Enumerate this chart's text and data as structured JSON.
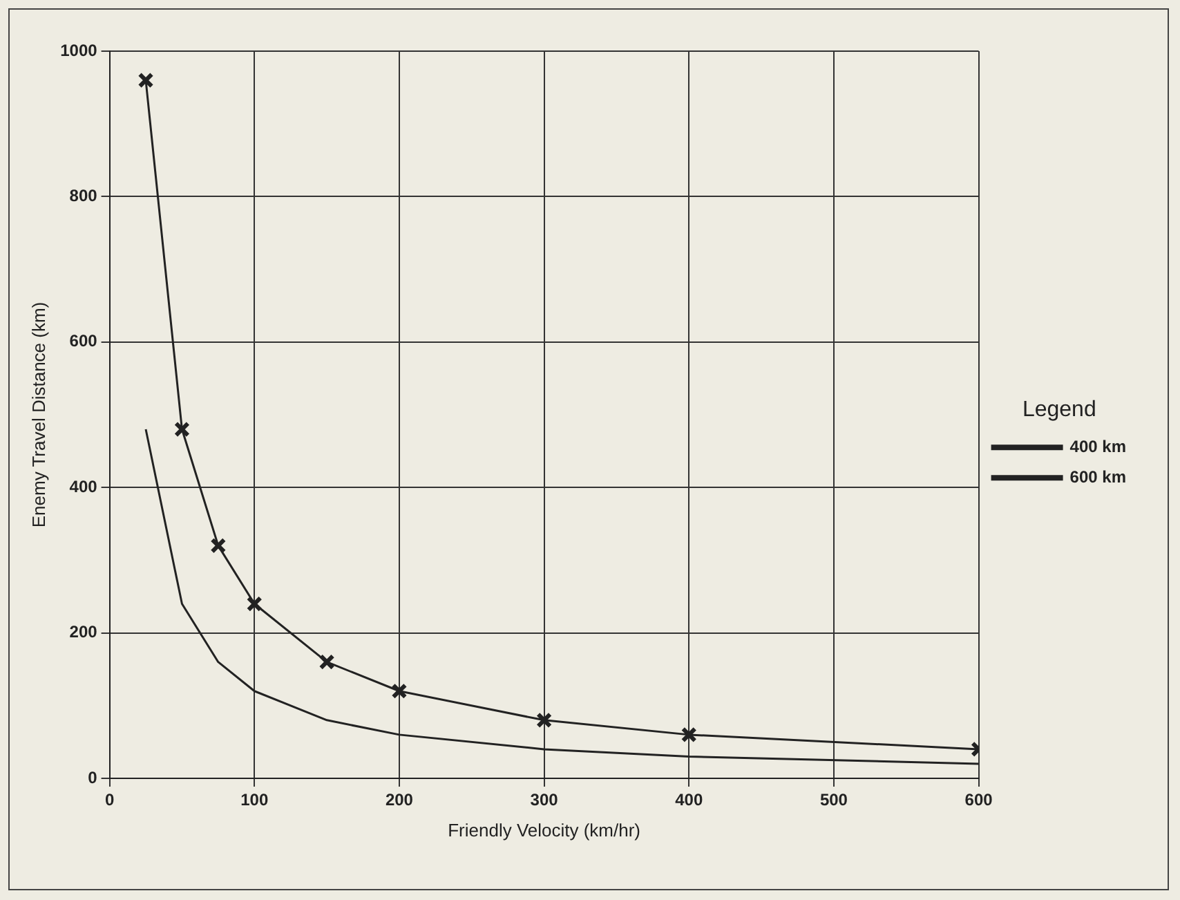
{
  "chart_data": {
    "type": "line",
    "xlabel": "Friendly Velocity (km/hr)",
    "ylabel": "Enemy Travel Distance (km)",
    "xlim": [
      0,
      600
    ],
    "xticks": [
      0,
      100,
      200,
      300,
      400,
      500,
      600
    ],
    "ylim": [
      0,
      1000
    ],
    "yticks": [
      0,
      200,
      400,
      600,
      800,
      1000
    ],
    "grid": true,
    "legend": "right",
    "legend_title": "Legend",
    "series": [
      {
        "name": "400 km",
        "color": "#222222",
        "marker": "none",
        "x": [
          25,
          50,
          75,
          100,
          150,
          200,
          300,
          400,
          600
        ],
        "values": [
          480,
          240,
          160,
          120,
          80,
          60,
          40,
          30,
          20
        ]
      },
      {
        "name": "600 km",
        "color": "#222222",
        "marker": "cross",
        "x": [
          25,
          50,
          75,
          100,
          150,
          200,
          300,
          400,
          600
        ],
        "values": [
          960,
          480,
          320,
          240,
          160,
          120,
          80,
          60,
          40
        ]
      }
    ]
  }
}
